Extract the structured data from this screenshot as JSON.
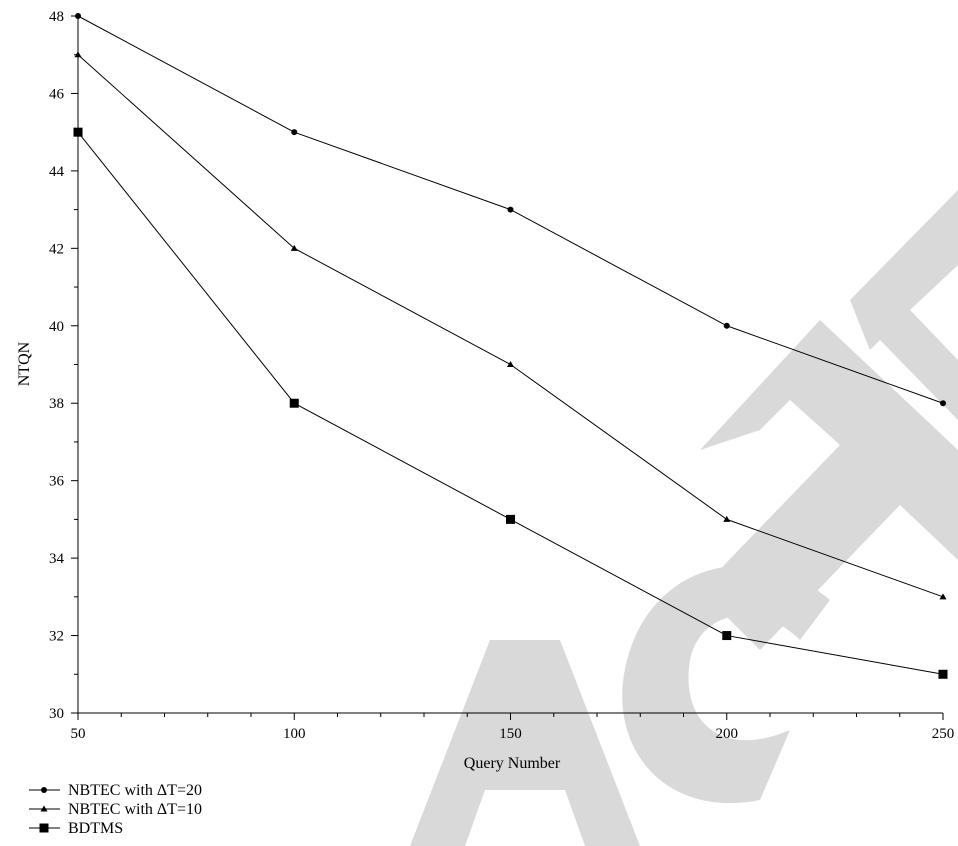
{
  "chart_data": {
    "type": "line",
    "title": "",
    "xlabel": "Query Number",
    "ylabel": "NTQN",
    "x": [
      50,
      100,
      150,
      200,
      250
    ],
    "xlim": [
      50,
      250
    ],
    "ylim": [
      30,
      48
    ],
    "x_ticks": [
      50,
      100,
      150,
      200,
      250
    ],
    "y_ticks": [
      30,
      32,
      34,
      36,
      38,
      40,
      42,
      44,
      46,
      48
    ],
    "grid": false,
    "legend_position": "bottom-left",
    "series": [
      {
        "name": "NBTEC with ΔT=20",
        "marker": "circle",
        "color": "#000000",
        "values": [
          48,
          45,
          43,
          40,
          38
        ]
      },
      {
        "name": "NBTEC with ΔT=10",
        "marker": "triangle",
        "color": "#000000",
        "values": [
          47,
          42,
          39,
          35,
          33
        ]
      },
      {
        "name": "BDTMS",
        "marker": "square",
        "color": "#000000",
        "values": [
          45,
          38,
          35,
          32,
          31
        ]
      }
    ]
  },
  "watermark": {
    "color": "#d9d9d9"
  }
}
